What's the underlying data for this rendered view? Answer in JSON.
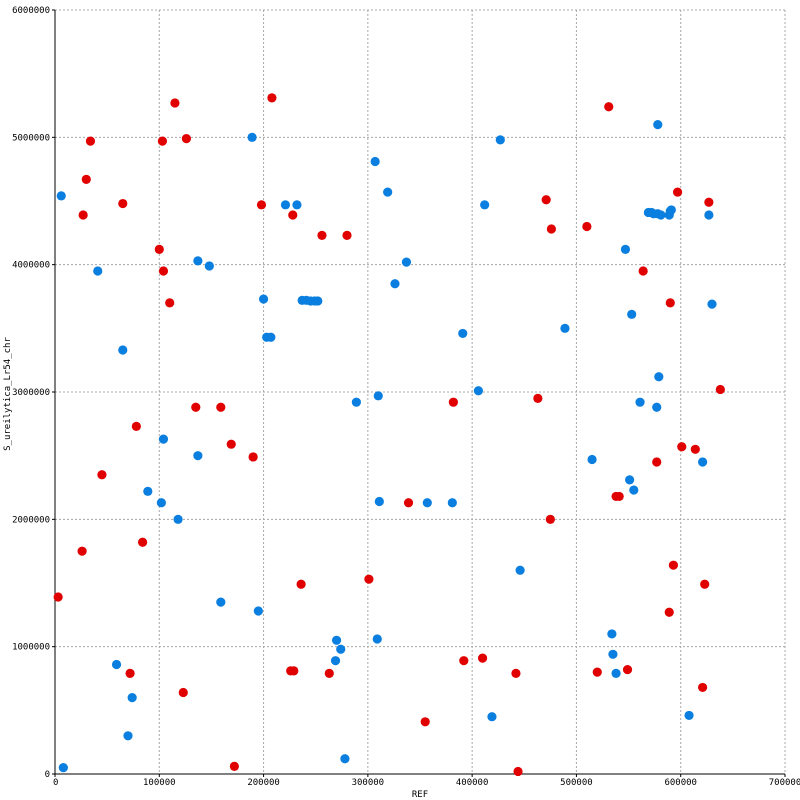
{
  "chart_data": {
    "type": "scatter",
    "title": "",
    "xlabel": "REF",
    "ylabel": "S_ureilytica_Lr54_chr",
    "xlim": [
      0,
      700000
    ],
    "ylim": [
      0,
      6000000
    ],
    "grid": true,
    "legend": "none",
    "x_ticks": [
      {
        "value": 0,
        "label": "0"
      },
      {
        "value": 100000,
        "label": "100000"
      },
      {
        "value": 200000,
        "label": "200000"
      },
      {
        "value": 300000,
        "label": "300000"
      },
      {
        "value": 400000,
        "label": "400000"
      },
      {
        "value": 500000,
        "label": "500000"
      },
      {
        "value": 600000,
        "label": "600000"
      },
      {
        "value": 700000,
        "label": "700000"
      }
    ],
    "y_ticks": [
      {
        "value": 0,
        "label": "0"
      },
      {
        "value": 1000000,
        "label": "1000000"
      },
      {
        "value": 2000000,
        "label": "2000000"
      },
      {
        "value": 3000000,
        "label": "3000000"
      },
      {
        "value": 4000000,
        "label": "4000000"
      },
      {
        "value": 5000000,
        "label": "5000000"
      },
      {
        "value": 6000000,
        "label": "6000000"
      }
    ],
    "series": [
      {
        "color": "#e00000",
        "points": [
          [
            3000,
            1390000
          ],
          [
            26000,
            1750000
          ],
          [
            27000,
            4390000
          ],
          [
            30000,
            4670000
          ],
          [
            34000,
            4970000
          ],
          [
            45000,
            2350000
          ],
          [
            65000,
            4480000
          ],
          [
            72000,
            790000
          ],
          [
            78000,
            2730000
          ],
          [
            84000,
            1820000
          ],
          [
            100000,
            4120000
          ],
          [
            103000,
            4970000
          ],
          [
            104000,
            3950000
          ],
          [
            110000,
            3700000
          ],
          [
            115000,
            5270000
          ],
          [
            123000,
            640000
          ],
          [
            126000,
            4990000
          ],
          [
            135000,
            2880000
          ],
          [
            159000,
            2880000
          ],
          [
            169000,
            2590000
          ],
          [
            172000,
            60000
          ],
          [
            190000,
            2490000
          ],
          [
            198000,
            4470000
          ],
          [
            208000,
            5310000
          ],
          [
            226000,
            810000
          ],
          [
            228000,
            4390000
          ],
          [
            229000,
            810000
          ],
          [
            236000,
            1490000
          ],
          [
            256000,
            4230000
          ],
          [
            263000,
            790000
          ],
          [
            280000,
            4230000
          ],
          [
            301000,
            1530000
          ],
          [
            339000,
            2130000
          ],
          [
            355000,
            410000
          ],
          [
            382000,
            2920000
          ],
          [
            392000,
            890000
          ],
          [
            410000,
            910000
          ],
          [
            442000,
            790000
          ],
          [
            444000,
            20000
          ],
          [
            463000,
            2950000
          ],
          [
            471000,
            4510000
          ],
          [
            475000,
            2000000
          ],
          [
            476000,
            4280000
          ],
          [
            510000,
            4300000
          ],
          [
            520000,
            800000
          ],
          [
            531000,
            5240000
          ],
          [
            538000,
            2180000
          ],
          [
            541000,
            2180000
          ],
          [
            549000,
            820000
          ],
          [
            564000,
            3950000
          ],
          [
            577000,
            2450000
          ],
          [
            589000,
            1270000
          ],
          [
            590000,
            3700000
          ],
          [
            593000,
            1640000
          ],
          [
            597000,
            4570000
          ],
          [
            601000,
            2570000
          ],
          [
            614000,
            2550000
          ],
          [
            621000,
            680000
          ],
          [
            623000,
            1490000
          ],
          [
            627000,
            4490000
          ],
          [
            638000,
            3020000
          ]
        ]
      },
      {
        "color": "#0a7fe0",
        "points": [
          [
            6000,
            4540000
          ],
          [
            8000,
            50000
          ],
          [
            41000,
            3950000
          ],
          [
            59000,
            860000
          ],
          [
            65000,
            3330000
          ],
          [
            70000,
            300000
          ],
          [
            74000,
            600000
          ],
          [
            89000,
            2220000
          ],
          [
            102000,
            2130000
          ],
          [
            104000,
            2630000
          ],
          [
            118000,
            2000000
          ],
          [
            137000,
            2500000
          ],
          [
            137000,
            4030000
          ],
          [
            148000,
            3990000
          ],
          [
            159000,
            1350000
          ],
          [
            189000,
            5000000
          ],
          [
            195000,
            1280000
          ],
          [
            200000,
            3730000
          ],
          [
            203000,
            3430000
          ],
          [
            207000,
            3430000
          ],
          [
            221000,
            4470000
          ],
          [
            232000,
            4470000
          ],
          [
            237000,
            3720000
          ],
          [
            241000,
            3720000
          ],
          [
            245000,
            3715000
          ],
          [
            249000,
            3715000
          ],
          [
            252000,
            3715000
          ],
          [
            269000,
            890000
          ],
          [
            270000,
            1050000
          ],
          [
            274000,
            980000
          ],
          [
            278000,
            120000
          ],
          [
            289000,
            2920000
          ],
          [
            307000,
            4810000
          ],
          [
            309000,
            1060000
          ],
          [
            310000,
            2970000
          ],
          [
            311000,
            2140000
          ],
          [
            319000,
            4570000
          ],
          [
            326000,
            3850000
          ],
          [
            337000,
            4020000
          ],
          [
            357000,
            2130000
          ],
          [
            381000,
            2130000
          ],
          [
            391000,
            3460000
          ],
          [
            406000,
            3010000
          ],
          [
            412000,
            4470000
          ],
          [
            419000,
            450000
          ],
          [
            427000,
            4980000
          ],
          [
            446000,
            1600000
          ],
          [
            489000,
            3500000
          ],
          [
            515000,
            2470000
          ],
          [
            534000,
            1100000
          ],
          [
            535000,
            940000
          ],
          [
            538000,
            790000
          ],
          [
            547000,
            4120000
          ],
          [
            551000,
            2310000
          ],
          [
            553000,
            3610000
          ],
          [
            555000,
            2230000
          ],
          [
            561000,
            2920000
          ],
          [
            569000,
            4410000
          ],
          [
            572000,
            4410000
          ],
          [
            574000,
            4400000
          ],
          [
            577000,
            2880000
          ],
          [
            578000,
            5100000
          ],
          [
            578000,
            4400000
          ],
          [
            579000,
            3120000
          ],
          [
            581000,
            4390000
          ],
          [
            589000,
            4390000
          ],
          [
            590000,
            4420000
          ],
          [
            591000,
            4430000
          ],
          [
            608000,
            460000
          ],
          [
            621000,
            2450000
          ],
          [
            627000,
            4390000
          ],
          [
            630000,
            3690000
          ]
        ]
      }
    ]
  }
}
